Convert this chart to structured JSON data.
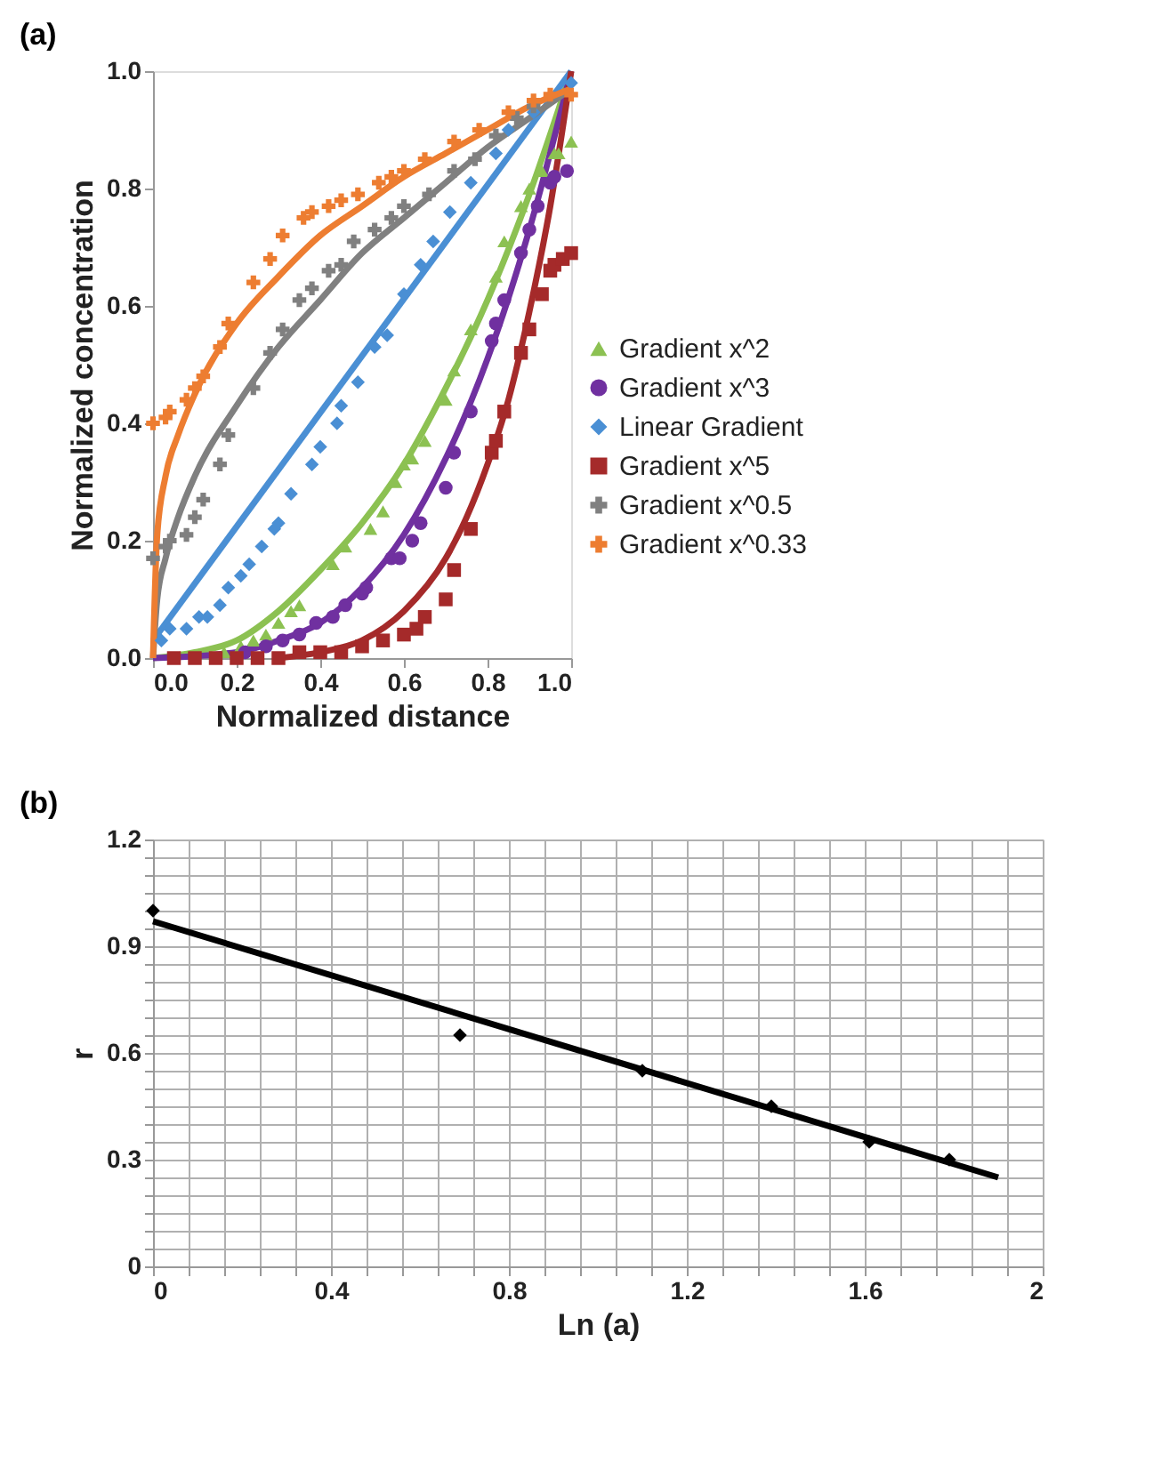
{
  "chart_data": [
    {
      "type": "scatter",
      "title": "(a)",
      "xlabel": "Normalized distance",
      "ylabel": "Normalized concentration",
      "xlim": [
        0,
        1
      ],
      "ylim": [
        0,
        1
      ],
      "xticks": [
        {
          "value": 0,
          "label": "0.0"
        },
        0.2,
        0.4,
        0.6,
        0.8,
        {
          "value": 1,
          "label": "1.0"
        }
      ],
      "yticks": [
        {
          "value": 0,
          "label": "0.0"
        },
        0.2,
        0.4,
        0.6,
        0.8,
        {
          "value": 1,
          "label": "1.0"
        }
      ],
      "grid": false,
      "legend": "right",
      "series": [
        {
          "name": "Gradient x^2",
          "marker": "triangle",
          "color": "#8cc152",
          "x": [
            0.17,
            0.21,
            0.24,
            0.27,
            0.3,
            0.33,
            0.35,
            0.43,
            0.46,
            0.52,
            0.55,
            0.58,
            0.6,
            0.62,
            0.65,
            0.7,
            0.72,
            0.76,
            0.82,
            0.84,
            0.88,
            0.9,
            0.93,
            0.96,
            0.97,
            1.0
          ],
          "values": [
            0.01,
            0.02,
            0.03,
            0.04,
            0.06,
            0.08,
            0.09,
            0.16,
            0.19,
            0.22,
            0.25,
            0.3,
            0.33,
            0.34,
            0.37,
            0.44,
            0.49,
            0.56,
            0.65,
            0.71,
            0.77,
            0.8,
            0.83,
            0.86,
            0.86,
            0.88
          ]
        },
        {
          "name": "Gradient x^3",
          "marker": "circle",
          "color": "#7030a0",
          "x": [
            0.22,
            0.27,
            0.31,
            0.35,
            0.39,
            0.43,
            0.46,
            0.5,
            0.51,
            0.57,
            0.59,
            0.62,
            0.64,
            0.7,
            0.72,
            0.76,
            0.81,
            0.82,
            0.84,
            0.88,
            0.9,
            0.92,
            0.95,
            0.96,
            0.99
          ],
          "values": [
            0.01,
            0.02,
            0.03,
            0.04,
            0.06,
            0.07,
            0.09,
            0.11,
            0.12,
            0.17,
            0.17,
            0.2,
            0.23,
            0.29,
            0.35,
            0.42,
            0.54,
            0.57,
            0.61,
            0.69,
            0.73,
            0.77,
            0.81,
            0.82,
            0.83
          ]
        },
        {
          "name": "Linear Gradient",
          "marker": "diamond",
          "color": "#4a8fd4",
          "x": [
            0.02,
            0.04,
            0.08,
            0.11,
            0.13,
            0.16,
            0.18,
            0.21,
            0.23,
            0.26,
            0.29,
            0.3,
            0.33,
            0.38,
            0.4,
            0.44,
            0.45,
            0.49,
            0.53,
            0.56,
            0.6,
            0.64,
            0.67,
            0.71,
            0.76,
            0.82,
            0.85,
            0.91,
            1.0
          ],
          "values": [
            0.03,
            0.05,
            0.05,
            0.07,
            0.07,
            0.09,
            0.12,
            0.14,
            0.16,
            0.19,
            0.22,
            0.23,
            0.28,
            0.33,
            0.36,
            0.4,
            0.43,
            0.47,
            0.53,
            0.55,
            0.62,
            0.67,
            0.71,
            0.76,
            0.81,
            0.86,
            0.9,
            0.93,
            0.98
          ]
        },
        {
          "name": "Gradient x^5",
          "marker": "square",
          "color": "#a52a2a",
          "x": [
            0.05,
            0.1,
            0.15,
            0.2,
            0.25,
            0.3,
            0.35,
            0.4,
            0.45,
            0.5,
            0.55,
            0.6,
            0.63,
            0.65,
            0.7,
            0.72,
            0.76,
            0.81,
            0.82,
            0.84,
            0.88,
            0.9,
            0.93,
            0.95,
            0.96,
            0.98,
            1.0
          ],
          "values": [
            0.0,
            0.0,
            0.0,
            0.0,
            0.0,
            0.0,
            0.01,
            0.01,
            0.01,
            0.02,
            0.03,
            0.04,
            0.05,
            0.07,
            0.1,
            0.15,
            0.22,
            0.35,
            0.37,
            0.42,
            0.52,
            0.56,
            0.62,
            0.66,
            0.67,
            0.68,
            0.69
          ]
        },
        {
          "name": "Gradient x^0.5",
          "marker": "cross",
          "color": "#808080",
          "x": [
            0.0,
            0.03,
            0.04,
            0.08,
            0.1,
            0.12,
            0.16,
            0.18,
            0.24,
            0.28,
            0.31,
            0.35,
            0.38,
            0.42,
            0.45,
            0.48,
            0.53,
            0.57,
            0.6,
            0.66,
            0.72,
            0.77,
            0.82,
            0.87,
            0.91
          ],
          "values": [
            0.17,
            0.19,
            0.2,
            0.21,
            0.24,
            0.27,
            0.33,
            0.38,
            0.46,
            0.52,
            0.56,
            0.61,
            0.63,
            0.66,
            0.67,
            0.71,
            0.73,
            0.75,
            0.77,
            0.79,
            0.83,
            0.85,
            0.89,
            0.92,
            0.94
          ]
        },
        {
          "name": "Gradient x^0.33",
          "marker": "cross",
          "color": "#ed7d31",
          "x": [
            0.0,
            0.03,
            0.04,
            0.08,
            0.1,
            0.12,
            0.16,
            0.18,
            0.24,
            0.28,
            0.31,
            0.36,
            0.38,
            0.42,
            0.45,
            0.49,
            0.54,
            0.57,
            0.6,
            0.65,
            0.72,
            0.78,
            0.85,
            0.91,
            0.95,
            1.0
          ],
          "values": [
            0.4,
            0.41,
            0.42,
            0.44,
            0.46,
            0.48,
            0.53,
            0.57,
            0.64,
            0.68,
            0.72,
            0.75,
            0.76,
            0.77,
            0.78,
            0.79,
            0.81,
            0.82,
            0.83,
            0.85,
            0.88,
            0.9,
            0.93,
            0.95,
            0.96,
            0.96
          ]
        },
        {
          "type": "line",
          "color": "#8cc152",
          "x": [
            0,
            0.1,
            0.2,
            0.3,
            0.4,
            0.5,
            0.6,
            0.7,
            0.8,
            0.9,
            1.0
          ],
          "values": [
            0,
            0.01,
            0.03,
            0.08,
            0.15,
            0.23,
            0.33,
            0.46,
            0.61,
            0.79,
            1.0
          ]
        },
        {
          "type": "line",
          "color": "#7030a0",
          "x": [
            0,
            0.2,
            0.3,
            0.4,
            0.5,
            0.6,
            0.7,
            0.8,
            0.9,
            1.0
          ],
          "values": [
            0,
            0.01,
            0.03,
            0.06,
            0.12,
            0.21,
            0.34,
            0.51,
            0.73,
            1.0
          ]
        },
        {
          "type": "line",
          "color": "#4a8fd4",
          "x": [
            0,
            1.0
          ],
          "values": [
            0.03,
            1.0
          ]
        },
        {
          "type": "line",
          "color": "#a52a2a",
          "x": [
            0.3,
            0.4,
            0.5,
            0.6,
            0.7,
            0.75,
            0.8,
            0.85,
            0.9,
            0.95,
            1.0
          ],
          "values": [
            0,
            0.01,
            0.03,
            0.08,
            0.17,
            0.24,
            0.33,
            0.44,
            0.59,
            0.77,
            1.0
          ]
        },
        {
          "type": "line",
          "color": "#808080",
          "x": [
            0,
            0.01,
            0.03,
            0.06,
            0.1,
            0.2,
            0.3,
            0.4,
            0.5,
            0.6,
            0.7,
            0.8,
            0.9,
            1.0
          ],
          "values": [
            0,
            0.1,
            0.17,
            0.24,
            0.31,
            0.43,
            0.53,
            0.61,
            0.69,
            0.75,
            0.81,
            0.87,
            0.92,
            0.97
          ]
        },
        {
          "type": "line",
          "color": "#ed7d31",
          "x": [
            0,
            0.01,
            0.03,
            0.06,
            0.1,
            0.2,
            0.3,
            0.4,
            0.5,
            0.6,
            0.7,
            0.8,
            0.9,
            1.0
          ],
          "values": [
            0,
            0.21,
            0.31,
            0.38,
            0.45,
            0.57,
            0.65,
            0.72,
            0.77,
            0.82,
            0.86,
            0.9,
            0.94,
            0.97
          ]
        }
      ]
    },
    {
      "type": "scatter",
      "title": "(b)",
      "xlabel": "Ln (a)",
      "ylabel": "r",
      "xlim": [
        0,
        2
      ],
      "ylim": [
        0,
        1.2
      ],
      "xticks": [
        0,
        {
          "value": 0.08,
          "label": null
        },
        {
          "value": 0.16,
          "label": null
        },
        {
          "value": 0.24,
          "label": null
        },
        {
          "value": 0.32,
          "label": null
        },
        0.4,
        {
          "value": 0.48,
          "label": null
        },
        {
          "value": 0.56,
          "label": null
        },
        {
          "value": 0.64,
          "label": null
        },
        {
          "value": 0.72,
          "label": null
        },
        0.8,
        {
          "value": 0.88,
          "label": null
        },
        {
          "value": 0.96,
          "label": null
        },
        {
          "value": 1.04,
          "label": null
        },
        {
          "value": 1.12,
          "label": null
        },
        1.2,
        {
          "value": 1.28,
          "label": null
        },
        {
          "value": 1.36,
          "label": null
        },
        {
          "value": 1.44,
          "label": null
        },
        {
          "value": 1.52,
          "label": null
        },
        1.6,
        {
          "value": 1.68,
          "label": null
        },
        {
          "value": 1.76,
          "label": null
        },
        {
          "value": 1.84,
          "label": null
        },
        {
          "value": 1.92,
          "label": null
        },
        2
      ],
      "yticks": [
        0,
        {
          "value": 0.05,
          "label": null
        },
        {
          "value": 0.1,
          "label": null
        },
        {
          "value": 0.15,
          "label": null
        },
        {
          "value": 0.2,
          "label": null
        },
        {
          "value": 0.25,
          "label": null
        },
        0.3,
        {
          "value": 0.35,
          "label": null
        },
        {
          "value": 0.4,
          "label": null
        },
        {
          "value": 0.45,
          "label": null
        },
        {
          "value": 0.5,
          "label": null
        },
        {
          "value": 0.55,
          "label": null
        },
        0.6,
        {
          "value": 0.65,
          "label": null
        },
        {
          "value": 0.7,
          "label": null
        },
        {
          "value": 0.75,
          "label": null
        },
        {
          "value": 0.8,
          "label": null
        },
        {
          "value": 0.85,
          "label": null
        },
        0.9,
        {
          "value": 0.95,
          "label": null
        },
        {
          "value": 1.0,
          "label": null
        },
        {
          "value": 1.05,
          "label": null
        },
        {
          "value": 1.1,
          "label": null
        },
        {
          "value": 1.15,
          "label": null
        },
        1.2
      ],
      "grid": true,
      "series": [
        {
          "marker": "diamond",
          "color": "#000000",
          "x": [
            0,
            0.69,
            1.1,
            1.39,
            1.61,
            1.79
          ],
          "values": [
            1.0,
            0.65,
            0.55,
            0.45,
            0.35,
            0.3
          ]
        },
        {
          "type": "line",
          "color": "#000000",
          "x": [
            0,
            1.9
          ],
          "values": [
            0.97,
            0.25
          ]
        }
      ]
    }
  ]
}
